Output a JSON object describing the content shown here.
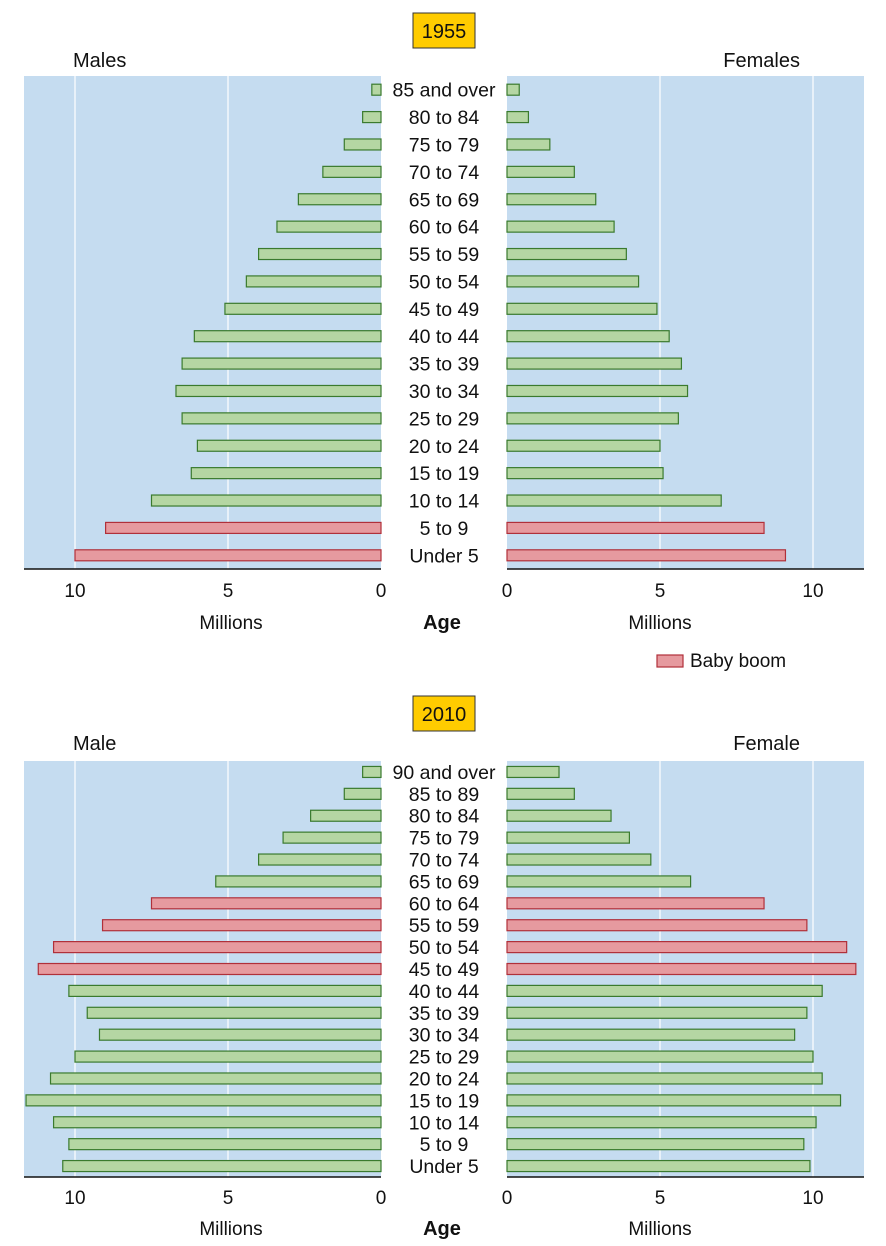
{
  "colors": {
    "normal_fill": "#b5d6a3",
    "normal_stroke": "#3a7a2e",
    "boom_fill": "#e69a9f",
    "boom_stroke": "#b0303a",
    "panel": "#c5dcf0",
    "year_badge": "#ffcc00"
  },
  "legend": {
    "label": "Baby boom"
  },
  "chart_data": [
    {
      "type": "bar",
      "subtype": "population-pyramid",
      "title": "1955",
      "left_label": "Males",
      "right_label": "Females",
      "category_axis_label": "Age",
      "value_axis_label": "Millions",
      "xlim": [
        0,
        12
      ],
      "ticks": [
        "10",
        "5",
        "0"
      ],
      "ticks_right": [
        "0",
        "5",
        "10"
      ],
      "tick_values": [
        10,
        5,
        0
      ],
      "tick_values_right": [
        0,
        5,
        10
      ],
      "grid": true,
      "categories": [
        "85 and over",
        "80 to 84",
        "75 to 79",
        "70 to 74",
        "65 to 69",
        "60 to 64",
        "55 to 59",
        "50 to 54",
        "45 to 49",
        "40 to 44",
        "35 to 39",
        "30 to 34",
        "25 to 29",
        "20 to 24",
        "15 to 19",
        "10 to 14",
        "5 to 9",
        "Under 5"
      ],
      "series": [
        {
          "name": "Males",
          "values": [
            0.3,
            0.6,
            1.2,
            1.9,
            2.7,
            3.4,
            4.0,
            4.4,
            5.1,
            6.1,
            6.5,
            6.7,
            6.5,
            6.0,
            6.2,
            7.5,
            9.0,
            10.0
          ]
        },
        {
          "name": "Females",
          "values": [
            0.4,
            0.7,
            1.4,
            2.2,
            2.9,
            3.5,
            3.9,
            4.3,
            4.9,
            5.3,
            5.7,
            5.9,
            5.6,
            5.0,
            5.1,
            7.0,
            8.4,
            9.1
          ]
        }
      ],
      "highlight_categories": [
        "5 to 9",
        "Under 5"
      ],
      "legend_position": "bottom-right"
    },
    {
      "type": "bar",
      "subtype": "population-pyramid",
      "title": "2010",
      "left_label": "Male",
      "right_label": "Female",
      "category_axis_label": "Age",
      "value_axis_label": "Millions",
      "xlim": [
        0,
        12
      ],
      "ticks": [
        "10",
        "5",
        "0"
      ],
      "ticks_right": [
        "0",
        "5",
        "10"
      ],
      "tick_values": [
        10,
        5,
        0
      ],
      "tick_values_right": [
        0,
        5,
        10
      ],
      "grid": true,
      "categories": [
        "90 and over",
        "85 to 89",
        "80 to 84",
        "75 to 79",
        "70 to 74",
        "65 to 69",
        "60 to 64",
        "55 to 59",
        "50 to 54",
        "45 to 49",
        "40 to 44",
        "35 to 39",
        "30 to 34",
        "25 to 29",
        "20 to 24",
        "15 to 19",
        "10 to 14",
        "5 to 9",
        "Under 5"
      ],
      "series": [
        {
          "name": "Male",
          "values": [
            0.6,
            1.2,
            2.3,
            3.2,
            4.0,
            5.4,
            7.5,
            9.1,
            10.7,
            11.2,
            10.2,
            9.6,
            9.2,
            10.0,
            10.8,
            11.6,
            10.7,
            10.2,
            10.4
          ]
        },
        {
          "name": "Female",
          "values": [
            1.7,
            2.2,
            3.4,
            4.0,
            4.7,
            6.0,
            8.4,
            9.8,
            11.1,
            11.4,
            10.3,
            9.8,
            9.4,
            10.0,
            10.3,
            10.9,
            10.1,
            9.7,
            9.9
          ]
        }
      ],
      "highlight_categories": [
        "60 to 64",
        "55 to 59",
        "50 to 54",
        "45 to 49"
      ]
    }
  ]
}
